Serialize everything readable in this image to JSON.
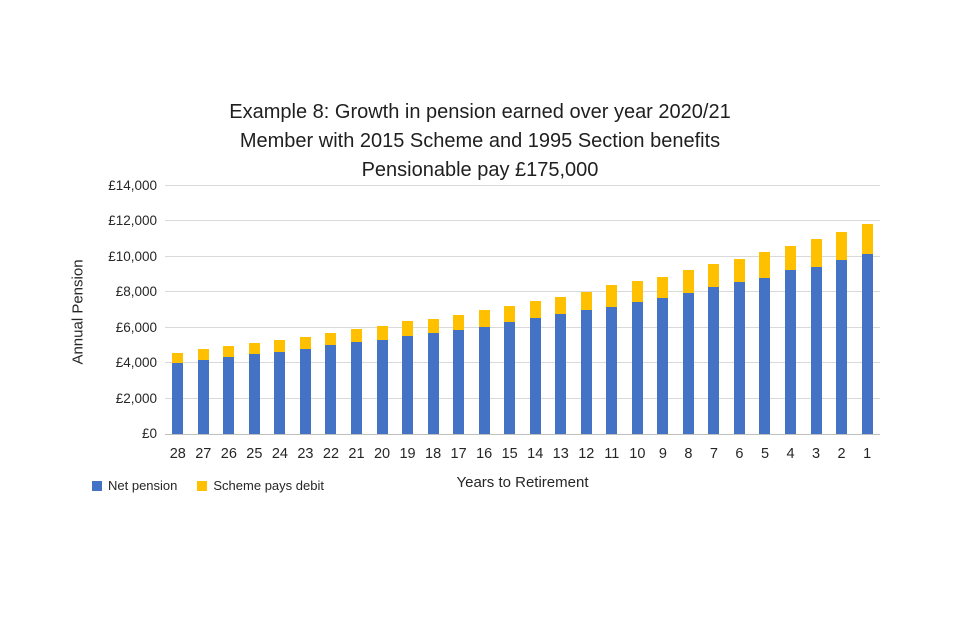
{
  "title_lines": [
    "Example 8: Growth in pension earned over year 2020/21",
    "Member with 2015 Scheme and 1995 Section benefits",
    "Pensionable pay £175,000"
  ],
  "colors": {
    "net_pension": "#4472C4",
    "scheme_pays_debit": "#FFC000",
    "gridline": "#D9D9D9",
    "axis_line": "#BFBFBF",
    "text": "#262626"
  },
  "chart_data": {
    "type": "bar",
    "stacked": true,
    "title": "Example 8: Growth in pension earned over year 2020/21 — Member with 2015 Scheme and 1995 Section benefits — Pensionable pay £175,000",
    "xlabel": "Years to Retirement",
    "ylabel": "Annual Pension",
    "ylim": [
      0,
      14000
    ],
    "ytick_step": 2000,
    "ytick_labels": [
      "£0",
      "£2,000",
      "£4,000",
      "£6,000",
      "£8,000",
      "£10,000",
      "£12,000",
      "£14,000"
    ],
    "grid": true,
    "legend_position": "bottom-left",
    "categories": [
      28,
      27,
      26,
      25,
      24,
      23,
      22,
      21,
      20,
      19,
      18,
      17,
      16,
      15,
      14,
      13,
      12,
      11,
      10,
      9,
      8,
      7,
      6,
      5,
      4,
      3,
      2,
      1
    ],
    "series": [
      {
        "name": "Net pension",
        "color": "#4472C4",
        "values": [
          4000,
          4180,
          4350,
          4520,
          4650,
          4820,
          5000,
          5180,
          5310,
          5510,
          5710,
          5870,
          6060,
          6320,
          6530,
          6790,
          6990,
          7190,
          7470,
          7690,
          7980,
          8300,
          8580,
          8820,
          9240,
          9450,
          9800,
          10180
        ]
      },
      {
        "name": "Scheme pays debit",
        "color": "#FFC000",
        "values": [
          600,
          600,
          620,
          640,
          680,
          680,
          700,
          720,
          790,
          850,
          800,
          830,
          920,
          890,
          960,
          920,
          1020,
          1200,
          1170,
          1200,
          1280,
          1280,
          1320,
          1470,
          1400,
          1540,
          1620,
          1700
        ]
      }
    ]
  }
}
